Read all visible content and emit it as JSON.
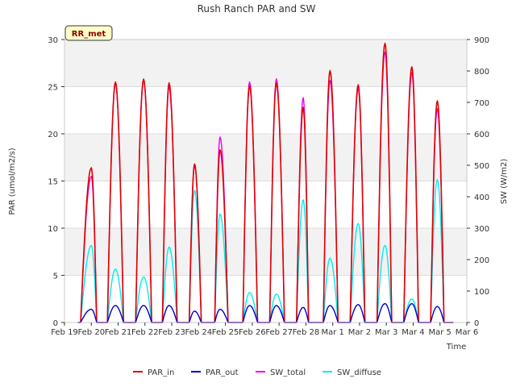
{
  "chart_data": {
    "type": "line",
    "title": "Rush Ranch PAR and SW",
    "xlabel": "Time",
    "ylabel_left": "PAR (umol/m2/s)",
    "ylabel_right": "SW (W/m2)",
    "ylim_left": [
      0,
      30
    ],
    "ylim_right": [
      0,
      900
    ],
    "xlim": [
      0,
      15
    ],
    "badge": "RR_met",
    "x_tick_labels": [
      "Feb 19",
      "Feb 20",
      "Feb 21",
      "Feb 22",
      "Feb 23",
      "Feb 24",
      "Feb 25",
      "Feb 26",
      "Feb 27",
      "Feb 28",
      "Mar 1",
      "Mar 2",
      "Mar 3",
      "Mar 4",
      "Mar 5",
      "Mar 6"
    ],
    "y_left_ticks": [
      0,
      5,
      10,
      15,
      20,
      25,
      30
    ],
    "y_right_ticks": [
      0,
      100,
      200,
      300,
      400,
      500,
      600,
      700,
      800,
      900
    ],
    "day_peaks": {
      "days": [
        "Feb 20",
        "Feb 21",
        "Feb 22",
        "Feb 23",
        "Feb 24",
        "Feb 25",
        "Feb 26",
        "Feb 27",
        "Feb 28",
        "Mar 1",
        "Mar 2",
        "Mar 3",
        "Mar 4",
        "Mar 5"
      ],
      "day_start": [
        0.6,
        1.6,
        2.65,
        3.65,
        4.65,
        5.6,
        6.65,
        7.65,
        8.65,
        9.65,
        10.65,
        11.65,
        12.65,
        13.65
      ],
      "day_end": [
        1.2,
        2.2,
        3.25,
        4.2,
        5.1,
        6.1,
        7.2,
        8.2,
        9.1,
        10.2,
        11.2,
        12.2,
        13.2,
        14.15
      ],
      "peak_time": [
        1.0,
        1.9,
        2.95,
        3.9,
        4.85,
        5.8,
        6.9,
        7.9,
        8.9,
        9.9,
        10.95,
        11.95,
        12.95,
        13.9
      ]
    },
    "series": [
      {
        "name": "PAR_in",
        "color": "#e00000",
        "axis": "left",
        "peaks": [
          16.4,
          25.5,
          25.8,
          25.4,
          16.8,
          18.3,
          25.1,
          25.4,
          22.8,
          26.7,
          25.2,
          29.6,
          27.1,
          23.5
        ]
      },
      {
        "name": "PAR_out",
        "color": "#0000cc",
        "axis": "left",
        "peaks": [
          1.4,
          1.8,
          1.8,
          1.8,
          1.2,
          1.4,
          1.8,
          1.8,
          1.6,
          1.8,
          1.9,
          2.0,
          2.0,
          1.7
        ]
      },
      {
        "name": "SW_total",
        "color": "#ee00ee",
        "axis": "right",
        "peaks": [
          465,
          760,
          770,
          750,
          500,
          590,
          765,
          775,
          715,
          770,
          745,
          860,
          795,
          680
        ]
      },
      {
        "name": "SW_diffuse",
        "color": "#00eeee",
        "axis": "right",
        "peaks": [
          245,
          170,
          145,
          240,
          420,
          345,
          95,
          90,
          390,
          205,
          315,
          245,
          75,
          455
        ]
      }
    ]
  }
}
